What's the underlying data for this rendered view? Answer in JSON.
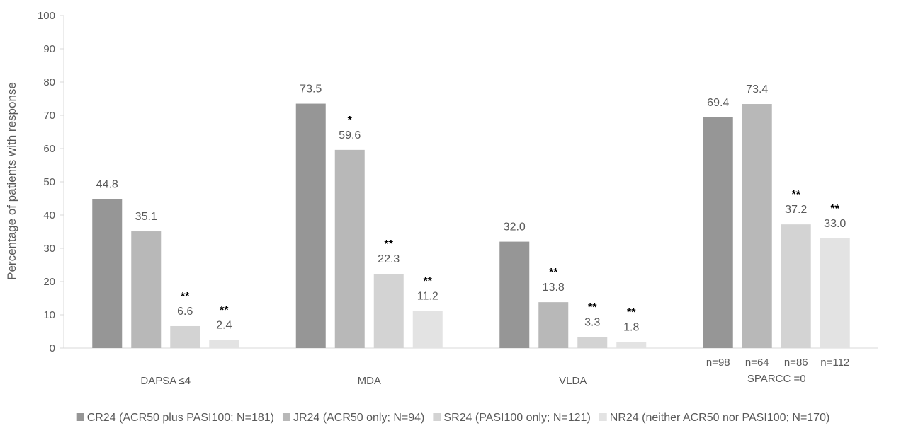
{
  "chart_data": {
    "type": "bar",
    "ylabel": "Percentage of patients with response",
    "ylim": [
      0,
      100
    ],
    "yticks": [
      0,
      10,
      20,
      30,
      40,
      50,
      60,
      70,
      80,
      90,
      100
    ],
    "grid": false,
    "legend_position": "bottom",
    "categories": [
      "DAPSA ≤4",
      "MDA",
      "VLDA",
      "SPARCC =0"
    ],
    "series": [
      {
        "name": "CR24 (ACR50 plus PASI100; N=181)",
        "color": "#969696",
        "values": [
          44.8,
          73.5,
          32.0,
          69.4
        ],
        "labels": [
          "44.8",
          "73.5",
          "32.0",
          "69.4"
        ],
        "significance": [
          "",
          "",
          "",
          ""
        ]
      },
      {
        "name": "JR24 (ACR50 only; N=94)",
        "color": "#b8b8b8",
        "values": [
          35.1,
          59.6,
          13.8,
          73.4
        ],
        "labels": [
          "35.1",
          "59.6",
          "13.8",
          "73.4"
        ],
        "significance": [
          "",
          "*",
          "**",
          ""
        ]
      },
      {
        "name": "SR24 (PASI100 only; N=121)",
        "color": "#d3d3d3",
        "values": [
          6.6,
          22.3,
          3.3,
          37.2
        ],
        "labels": [
          "6.6",
          "22.3",
          "3.3",
          "37.2"
        ],
        "significance": [
          "**",
          "**",
          "**",
          "**"
        ]
      },
      {
        "name": "NR24 (neither ACR50 nor PASI100; N=170)",
        "color": "#e3e3e3",
        "values": [
          2.4,
          11.2,
          1.8,
          33.0
        ],
        "labels": [
          "2.4",
          "11.2",
          "1.8",
          "33.0"
        ],
        "significance": [
          "**",
          "**",
          "**",
          "**"
        ]
      }
    ],
    "sample_sizes": {
      "category": "SPARCC =0",
      "labels": [
        "n=98",
        "n=64",
        "n=86",
        "n=112"
      ]
    }
  }
}
